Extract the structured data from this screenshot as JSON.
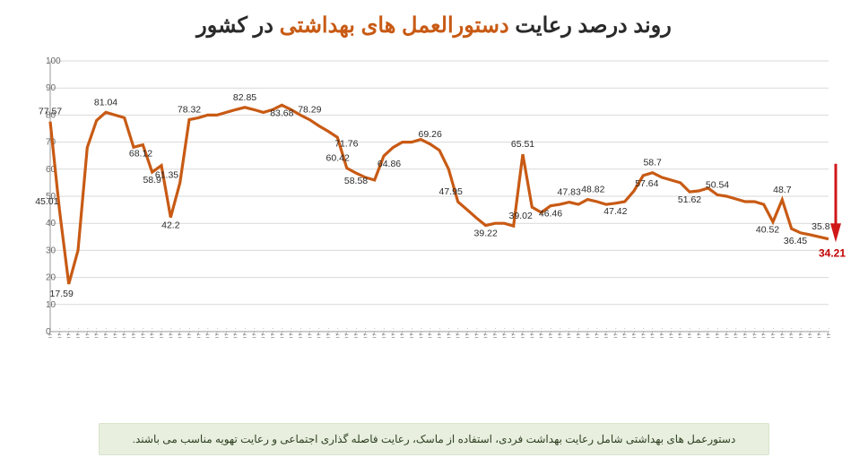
{
  "title": {
    "part1": "روند درصد رعایت ",
    "highlight": "دستورالعمل های بهداشتی ",
    "part2": "در کشور",
    "fontsize": 24
  },
  "footer": {
    "text": "دستورعمل های بهداشتی شامل رعایت بهداشت فردی، استفاده از ماسک، رعایت فاصله گذاری اجتماعی و رعایت تهویه مناسب می باشند."
  },
  "chart": {
    "type": "line",
    "background_color": "#ffffff",
    "grid_color": "#d9d9d9",
    "axis_color": "#9a9a9a",
    "line_color": "#c85a14",
    "line_width": 3.2,
    "final_label_color": "#c20000",
    "arrow_color": "#d11818",
    "ylim": [
      0,
      100
    ],
    "ytick_step": 10,
    "yticks": [
      0,
      10,
      20,
      30,
      40,
      50,
      60,
      70,
      80,
      90,
      100
    ],
    "label_fontsize": 10,
    "xlabel_rotation": -90,
    "series": {
      "values": [
        77.57,
        45.01,
        17.59,
        30,
        68,
        78,
        81.04,
        80,
        79,
        68.12,
        69,
        58.9,
        61.35,
        42.2,
        55,
        78.32,
        79,
        80,
        80,
        81,
        82,
        82.85,
        82,
        81,
        82,
        83.68,
        82,
        80,
        78.29,
        76,
        74,
        71.76,
        60.42,
        58.58,
        57,
        56,
        64.86,
        68,
        70,
        70,
        71,
        69.26,
        67,
        60,
        47.95,
        45,
        42,
        39.22,
        40,
        40,
        39.02,
        65.51,
        46,
        44,
        46.46,
        47,
        47.83,
        47,
        48.82,
        48,
        47,
        47.42,
        48,
        52,
        57.64,
        58.7,
        57,
        56,
        55,
        51.62,
        52,
        53,
        50.54,
        50,
        49,
        48,
        48,
        47,
        40.52,
        48.7,
        38,
        36.45,
        35.8,
        35,
        34.21
      ],
      "labeled_points": [
        {
          "i": 0,
          "v": 77.57,
          "dy": -8
        },
        {
          "i": 1,
          "v": 45.01,
          "dy": 0,
          "dx": -14
        },
        {
          "i": 2,
          "v": 17.59,
          "dy": 14,
          "dx": -8
        },
        {
          "i": 6,
          "v": 81.04,
          "dy": -8
        },
        {
          "i": 9,
          "v": 68.12,
          "dy": 10,
          "dx": 8
        },
        {
          "i": 11,
          "v": 58.9,
          "dy": 12
        },
        {
          "i": 12,
          "v": 61.35,
          "dy": 14,
          "dx": 6
        },
        {
          "i": 13,
          "v": 42.2,
          "dy": 12
        },
        {
          "i": 15,
          "v": 78.32,
          "dy": -8
        },
        {
          "i": 21,
          "v": 82.85,
          "dy": -8
        },
        {
          "i": 25,
          "v": 83.68,
          "dy": 12
        },
        {
          "i": 28,
          "v": 78.29,
          "dy": -8
        },
        {
          "i": 31,
          "v": 71.76,
          "dy": 10,
          "dx": 10
        },
        {
          "i": 32,
          "v": 60.42,
          "dy": -8,
          "dx": -10
        },
        {
          "i": 33,
          "v": 58.58,
          "dy": 12
        },
        {
          "i": 36,
          "v": 64.86,
          "dy": 12,
          "dx": 6
        },
        {
          "i": 41,
          "v": 69.26,
          "dy": -8
        },
        {
          "i": 44,
          "v": 47.95,
          "dy": -8,
          "dx": -8
        },
        {
          "i": 47,
          "v": 39.22,
          "dy": 12
        },
        {
          "i": 50,
          "v": 39.02,
          "dy": -8,
          "dx": 8
        },
        {
          "i": 51,
          "v": 65.51,
          "dy": -8
        },
        {
          "i": 54,
          "v": 46.46,
          "dy": 12
        },
        {
          "i": 56,
          "v": 47.83,
          "dy": -8
        },
        {
          "i": 58,
          "v": 48.82,
          "dy": -8,
          "dx": 6
        },
        {
          "i": 61,
          "v": 47.42,
          "dy": 12
        },
        {
          "i": 64,
          "v": 57.64,
          "dy": 12,
          "dx": 4
        },
        {
          "i": 65,
          "v": 58.7,
          "dy": -8
        },
        {
          "i": 69,
          "v": 51.62,
          "dy": 12
        },
        {
          "i": 72,
          "v": 50.54,
          "dy": -8
        },
        {
          "i": 78,
          "v": 40.52,
          "dy": 12,
          "dx": -6
        },
        {
          "i": 79,
          "v": 48.7,
          "dy": -8
        },
        {
          "i": 81,
          "v": 36.45,
          "dy": 12,
          "dx": -6
        },
        {
          "i": 82,
          "v": 35.8,
          "dy": -6,
          "dx": 12
        },
        {
          "i": 84,
          "v": 34.21,
          "dy": 20,
          "dx": 4,
          "last": true
        }
      ]
    },
    "x_categories_sample": [
      "اردیبهشت ۱۳۹۹",
      "",
      "",
      "",
      "",
      "",
      "",
      "",
      "",
      "",
      "",
      "",
      "",
      "",
      "",
      "",
      "",
      "",
      "",
      "",
      "",
      "",
      "",
      "",
      "",
      "",
      "",
      "",
      "",
      "",
      "",
      "",
      "",
      "",
      "",
      "",
      "",
      "",
      "",
      "",
      "",
      "",
      "",
      "",
      "",
      "",
      "",
      "",
      "",
      "",
      "",
      "",
      "",
      "",
      "",
      "",
      "",
      "",
      "",
      "",
      "",
      "",
      "",
      "",
      "",
      "",
      "",
      "",
      "",
      "",
      "",
      "",
      "",
      "",
      "",
      "",
      "",
      "",
      "",
      "",
      "",
      "",
      "",
      "",
      ""
    ]
  }
}
